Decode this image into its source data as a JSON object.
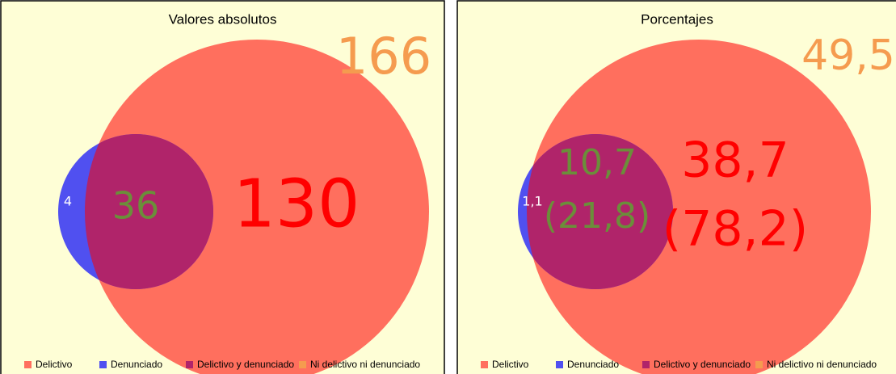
{
  "panels": [
    {
      "title": "Valores absolutos",
      "outside": "166",
      "blue_only": "4",
      "overlap": [
        "36"
      ],
      "red_only": [
        "130"
      ],
      "legend": [
        "Delictivo",
        "Denunciado",
        "Delictivo y denunciado",
        "Ni delictivo ni denunciado"
      ]
    },
    {
      "title": "Porcentajes",
      "outside": "49,5",
      "blue_only": "1,1",
      "overlap": [
        "10,7",
        "(21,8)"
      ],
      "red_only": [
        "38,7",
        "(78,2)"
      ],
      "legend": [
        "Delictivo",
        "Denunciado",
        "Delictivo y denunciado",
        "Ni delictivo ni denunciado"
      ]
    }
  ]
}
